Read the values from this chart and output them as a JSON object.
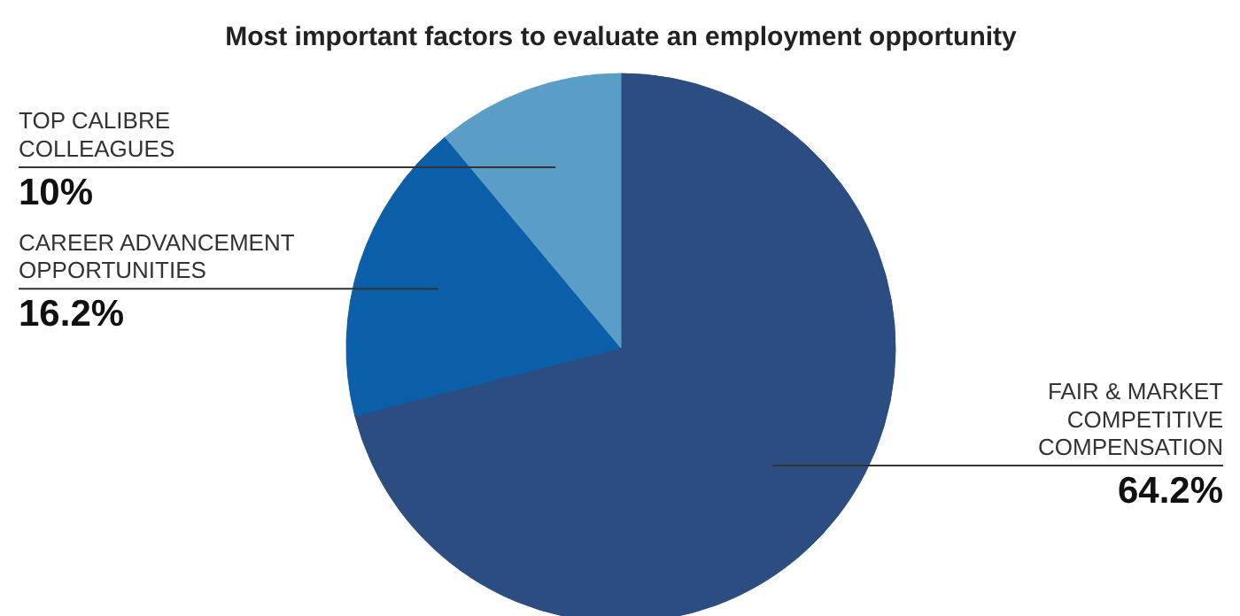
{
  "chart_data": {
    "type": "pie",
    "title": "Most important factors to evaluate an employment opportunity",
    "categories": [
      "FAIR & MARKET\nCOMPETITIVE\nCOMPENSATION",
      "CAREER ADVANCEMENT\nOPPORTUNITIES",
      "TOP CALIBRE\nCOLLEAGUES"
    ],
    "values": [
      64.2,
      16.2,
      10
    ],
    "value_labels": [
      "64.2%",
      "16.2%",
      "10%"
    ],
    "colors": [
      "#2b4d82",
      "#0a5fa8",
      "#5a9ec8"
    ]
  }
}
